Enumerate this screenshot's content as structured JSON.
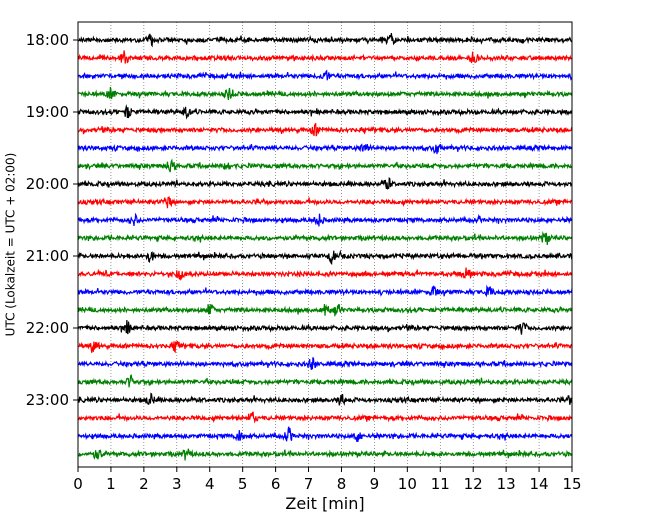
{
  "chart_data": {
    "type": "line",
    "chart_kind": "helicorder",
    "xlabel": "Zeit  [min]",
    "ylabel": "UTC (Lokalzeit = UTC + 02:00)",
    "xlim": [
      0,
      15
    ],
    "x_ticks": [
      "0",
      "1",
      "2",
      "3",
      "4",
      "5",
      "6",
      "7",
      "8",
      "9",
      "10",
      "11",
      "12",
      "13",
      "14",
      "15"
    ],
    "y_tick_labels": [
      "18:00",
      "19:00",
      "20:00",
      "21:00",
      "22:00",
      "23:00"
    ],
    "grid": "vertical dotted lines at each minute",
    "trace_colors": [
      "#000000",
      "#ff0000",
      "#0000ff",
      "#008000"
    ],
    "traces": [
      {
        "start": "18:00",
        "events": [
          2.2,
          9.5
        ]
      },
      {
        "start": "18:15",
        "events": [
          1.4,
          12.0
        ]
      },
      {
        "start": "18:30",
        "events": [
          7.5
        ]
      },
      {
        "start": "18:45",
        "events": [
          1.0,
          4.6
        ]
      },
      {
        "start": "19:00",
        "events": [
          1.5,
          3.3
        ]
      },
      {
        "start": "19:15",
        "events": [
          7.2
        ]
      },
      {
        "start": "19:30",
        "events": [
          8.7,
          10.9
        ]
      },
      {
        "start": "19:45",
        "events": [
          2.8,
          4.5
        ]
      },
      {
        "start": "20:00",
        "events": [
          9.4
        ]
      },
      {
        "start": "20:15",
        "events": [
          2.7
        ]
      },
      {
        "start": "20:30",
        "events": [
          1.7,
          7.3
        ]
      },
      {
        "start": "20:45",
        "events": [
          14.2
        ]
      },
      {
        "start": "21:00",
        "events": [
          2.2,
          7.7
        ]
      },
      {
        "start": "21:15",
        "events": [
          3.1,
          11.8
        ]
      },
      {
        "start": "21:30",
        "events": [
          10.8,
          12.5
        ]
      },
      {
        "start": "21:45",
        "events": [
          4.0,
          7.5,
          7.9
        ]
      },
      {
        "start": "22:00",
        "events": [
          1.5,
          13.5
        ]
      },
      {
        "start": "22:15",
        "events": [
          0.5,
          3.0
        ]
      },
      {
        "start": "22:30",
        "events": [
          7.1
        ]
      },
      {
        "start": "22:45",
        "events": [
          1.6
        ]
      },
      {
        "start": "23:00",
        "events": [
          2.2,
          8.0,
          15.0
        ]
      },
      {
        "start": "23:15",
        "events": [
          5.3
        ]
      },
      {
        "start": "23:30",
        "events": [
          4.9,
          6.4,
          8.5
        ]
      },
      {
        "start": "23:45",
        "events": [
          0.6,
          3.3
        ]
      }
    ]
  }
}
